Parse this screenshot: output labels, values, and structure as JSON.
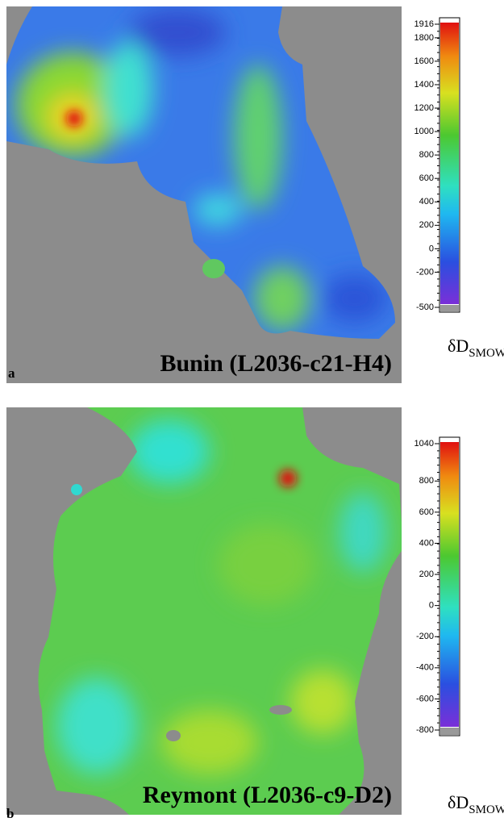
{
  "panels": [
    {
      "label": "a",
      "title": "Bunin (L2036-c21-H4)",
      "colorbar": {
        "ticks": [
          1916,
          1800,
          1600,
          1400,
          1200,
          1000,
          800,
          600,
          400,
          200,
          0,
          -200,
          -500
        ],
        "label": "δD",
        "label_sub": "SMOW"
      }
    },
    {
      "label": "b",
      "title": "Reymont (L2036-c9-D2)",
      "colorbar": {
        "ticks": [
          1040,
          800,
          600,
          400,
          200,
          0,
          -200,
          -400,
          -600,
          -800
        ],
        "label": "δD",
        "label_sub": "SMOW"
      }
    }
  ]
}
